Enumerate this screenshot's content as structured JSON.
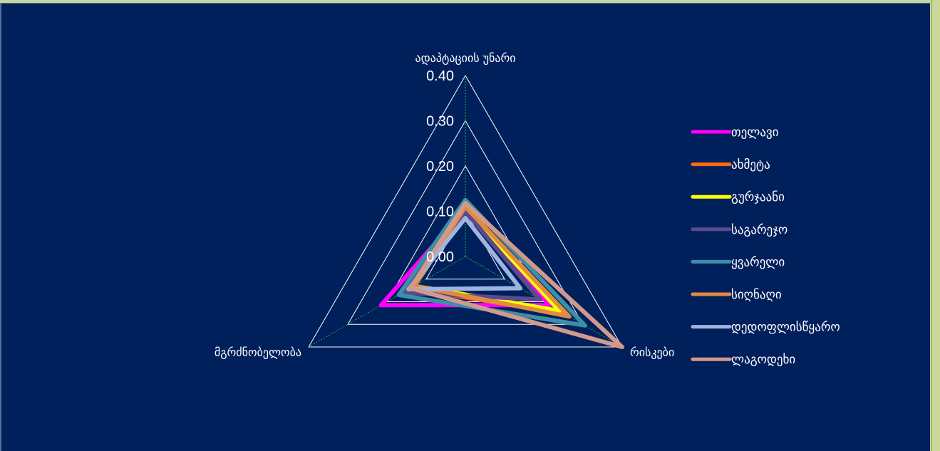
{
  "chart_data": {
    "type": "radar",
    "axes": [
      "ადაპტაციის უნარი",
      "რისკები",
      "მგრძნობელობა"
    ],
    "ticks": [
      "0.00",
      "0.10",
      "0.20",
      "0.30",
      "0.40"
    ],
    "rmax": 0.4,
    "series": [
      {
        "name": "თელავი",
        "color": "#ff00ff",
        "values": [
          0.105,
          0.215,
          0.215
        ]
      },
      {
        "name": "ახმეტა",
        "color": "#ff6a10",
        "values": [
          0.112,
          0.255,
          0.14
        ]
      },
      {
        "name": "გურჯაანი",
        "color": "#ffff00",
        "values": [
          0.105,
          0.24,
          0.13
        ]
      },
      {
        "name": "საგარეჯო",
        "color": "#5a4a8e",
        "values": [
          0.1,
          0.19,
          0.16
        ]
      },
      {
        "name": "ყვარელი",
        "color": "#3e8ea8",
        "values": [
          0.125,
          0.305,
          0.17
        ]
      },
      {
        "name": "სიღნაღი",
        "color": "#e08c40",
        "values": [
          0.11,
          0.265,
          0.13
        ]
      },
      {
        "name": "დედოფლისწყარო",
        "color": "#9fb4de",
        "values": [
          0.085,
          0.14,
          0.145
        ]
      },
      {
        "name": "ლაგოდეხი",
        "color": "#d39a8c",
        "values": [
          0.118,
          0.4,
          0.14
        ]
      }
    ],
    "grid": true,
    "legend": "right"
  }
}
